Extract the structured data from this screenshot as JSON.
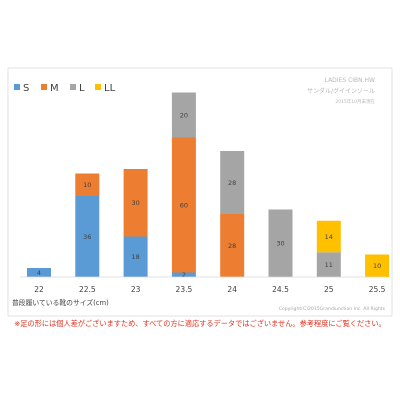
{
  "chart_data": {
    "type": "bar",
    "stacked": true,
    "categories": [
      "22",
      "22.5",
      "23",
      "23.5",
      "24",
      "24.5",
      "25",
      "25.5"
    ],
    "series": [
      {
        "name": "S",
        "color": "#5b9bd5",
        "values": [
          4,
          36,
          18,
          2,
          0,
          0,
          0,
          0
        ]
      },
      {
        "name": "M",
        "color": "#ed7d31",
        "values": [
          0,
          10,
          30,
          60,
          28,
          0,
          0,
          0
        ]
      },
      {
        "name": "L",
        "color": "#a5a5a5",
        "values": [
          0,
          0,
          0,
          20,
          28,
          30,
          11,
          0
        ]
      },
      {
        "name": "LL",
        "color": "#ffc000",
        "values": [
          0,
          0,
          0,
          0,
          0,
          0,
          14,
          10
        ]
      }
    ],
    "ylim": [
      0,
      80
    ],
    "xlabel": "普段履いている靴のサイズ(cm)",
    "legend_position": "top-left",
    "header": {
      "line1": "LADIES CIBN.HW",
      "line2": "サンダル/グイインソール",
      "line3": "2015年10月末現在"
    },
    "copyright": "Copyright(C)2015Grandiunction Inc. All Rights"
  },
  "footnote": "※足の形には個人差がございますため、すべての方に適応するデータではございません。参考程度にご覧ください。"
}
